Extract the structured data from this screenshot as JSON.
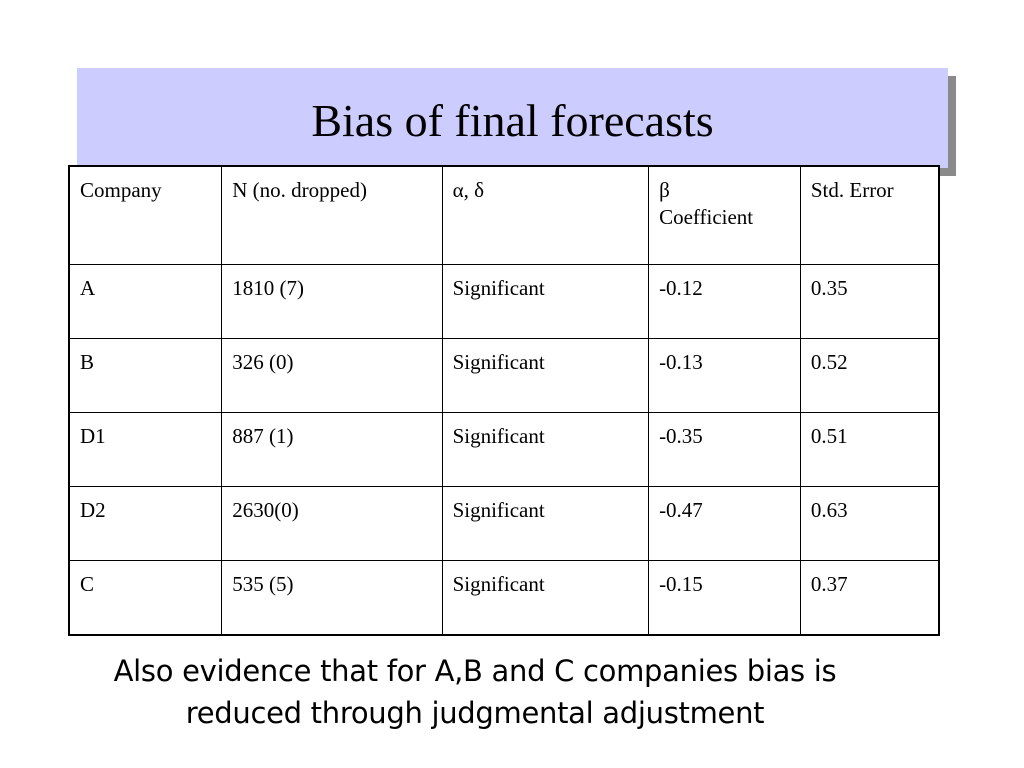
{
  "slide": {
    "title": "Bias of final forecasts",
    "caption_line1": "Also evidence that for A,B and C companies bias is",
    "caption_line2": "reduced through judgmental adjustment"
  },
  "table": {
    "headers": [
      "Company",
      "N (no. dropped)",
      "α, δ",
      "β",
      "Coefficient",
      "Std. Error"
    ],
    "rows": [
      [
        "A",
        "1810 (7)",
        "Significant",
        "-0.12",
        "0.35"
      ],
      [
        "B",
        "326 (0)",
        "Significant",
        "-0.13",
        "0.52"
      ],
      [
        "D1",
        "887 (1)",
        "Significant",
        "-0.35",
        "0.51"
      ],
      [
        "D2",
        "2630(0)",
        "Significant",
        "-0.47",
        "0.63"
      ],
      [
        "C",
        "535 (5)",
        "Significant",
        "-0.15",
        "0.37"
      ]
    ]
  },
  "colors": {
    "title_background": "#ccccff",
    "title_shadow": "#8a8a8a"
  }
}
